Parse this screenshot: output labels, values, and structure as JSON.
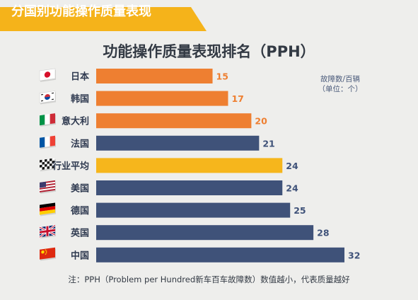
{
  "banner": {
    "title": "分国别功能操作质量表现"
  },
  "chart_data": {
    "type": "bar",
    "orientation": "horizontal",
    "title": "功能操作质量表现排名（PPH）",
    "unit_line1": "故障数/百辆",
    "unit_line2": "（单位：个）",
    "categories": [
      "日本",
      "韩国",
      "意大利",
      "法国",
      "行业平均",
      "美国",
      "德国",
      "英国",
      "中国"
    ],
    "values": [
      15,
      17,
      20,
      21,
      24,
      24,
      25,
      28,
      32
    ],
    "bar_colors": [
      "#ee7f31",
      "#ee7f31",
      "#ee7f31",
      "#3f5279",
      "#f6b61c",
      "#3f5279",
      "#3f5279",
      "#3f5279",
      "#3f5279"
    ],
    "value_label_colors": [
      "#ee7f31",
      "#ee7f31",
      "#ee7f31",
      "#3f5279",
      "#3f5279",
      "#3f5279",
      "#3f5279",
      "#3f5279",
      "#3f5279"
    ],
    "flags": [
      "flag-japan-icon",
      "flag-korea-icon",
      "flag-italy-icon",
      "flag-france-icon",
      "checkered-flag-icon",
      "flag-usa-icon",
      "flag-germany-icon",
      "flag-uk-icon",
      "flag-china-icon"
    ],
    "xlim": [
      0,
      32
    ],
    "grid": false,
    "legend": "none"
  },
  "footnote": "注：PPH（Problem per Hundred新车百车故障数）数值越小，代表质量越好"
}
